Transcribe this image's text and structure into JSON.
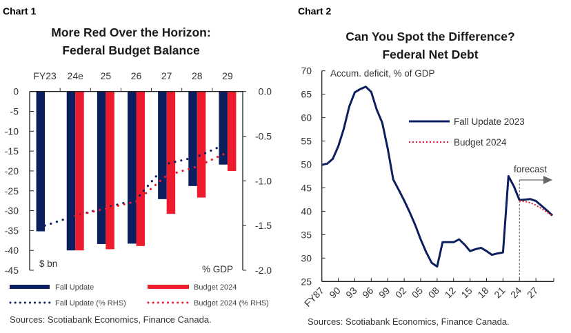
{
  "colors": {
    "fall": "#0b1f5e",
    "budget": "#ec1c2e",
    "axis": "#222222",
    "forecast": "#666666"
  },
  "chart_data": [
    {
      "type": "bar",
      "label": "Chart 1",
      "title": [
        "More Red Over the Horizon:",
        "Federal Budget Balance"
      ],
      "categories": [
        "FY23",
        "24e",
        "25",
        "26",
        "27",
        "28",
        "29"
      ],
      "left_axis": {
        "unit_label": "$ bn",
        "ylim": [
          -45,
          0
        ],
        "ticks": [
          "0",
          "-5",
          "-10",
          "-15",
          "-20",
          "-25",
          "-30",
          "-35",
          "-40",
          "-45"
        ]
      },
      "right_axis": {
        "unit_label": "% GDP",
        "ylim": [
          -2.0,
          0.0
        ],
        "ticks": [
          "0.0",
          "-0.5",
          "-1.0",
          "-1.5",
          "-2.0"
        ]
      },
      "series": [
        {
          "name": "Fall Update",
          "kind": "bar",
          "axis": "left",
          "color": "#0b1f5e",
          "values": [
            -35.2,
            -40.0,
            -38.4,
            -38.3,
            -27.1,
            -23.8,
            -18.4
          ]
        },
        {
          "name": "Budget 2024",
          "kind": "bar",
          "axis": "left",
          "color": "#ec1c2e",
          "values": [
            null,
            -40.0,
            -39.7,
            -38.9,
            -30.8,
            -26.7,
            -20.0
          ]
        },
        {
          "name": "Fall Update (% RHS)",
          "kind": "dotted-line",
          "axis": "right",
          "color": "#0b1f5e",
          "values": [
            -1.5,
            -1.39,
            -1.3,
            -1.21,
            -0.81,
            -0.73,
            -0.58
          ]
        },
        {
          "name": "Budget 2024 (% RHS)",
          "kind": "dotted-line",
          "axis": "right",
          "color": "#ec1c2e",
          "values": [
            null,
            -1.39,
            -1.31,
            -1.23,
            -0.94,
            -0.84,
            -0.68
          ]
        }
      ],
      "legend_placement": "bottom",
      "source": "Sources: Scotiabank Economics, Finance Canada."
    },
    {
      "type": "line",
      "label": "Chart 2",
      "title": [
        "Can You Spot the Difference?",
        "Federal Net Debt"
      ],
      "ylabel": "Accum. deficit, % of GDP",
      "ylim": [
        25,
        70
      ],
      "yticks": [
        "70",
        "65",
        "60",
        "55",
        "50",
        "45",
        "40",
        "35",
        "30",
        "25"
      ],
      "xlim": [
        1987,
        2029
      ],
      "xtick_labels": [
        "FY87",
        "90",
        "93",
        "96",
        "99",
        "02",
        "05",
        "08",
        "12",
        "15",
        "18",
        "21",
        "24",
        "27"
      ],
      "series": [
        {
          "name": "Fall Update 2023",
          "style": "solid",
          "color": "#0b1f5e",
          "x": [
            1987,
            1988,
            1989,
            1990,
            1991,
            1992,
            1993,
            1994,
            1995,
            1996,
            1997,
            1998,
            1999,
            2000,
            2001,
            2002,
            2003,
            2004,
            2005,
            2006,
            2007,
            2008,
            2009,
            2010,
            2011,
            2012,
            2013,
            2014,
            2015,
            2016,
            2017,
            2018,
            2019,
            2020,
            2021,
            2022,
            2023,
            2024,
            2025,
            2026,
            2027,
            2028,
            2029
          ],
          "y": [
            49.9,
            50.2,
            51.2,
            53.9,
            57.6,
            62.4,
            65.4,
            66.1,
            66.6,
            65.5,
            61.7,
            58.9,
            53.4,
            46.8,
            44.6,
            42.3,
            39.8,
            37.1,
            34.0,
            31.3,
            29.0,
            28.2,
            33.4,
            33.4,
            33.4,
            34.0,
            32.9,
            31.5,
            31.9,
            32.2,
            31.5,
            30.7,
            31.0,
            31.2,
            47.5,
            45.3,
            42.4,
            42.5,
            42.6,
            42.2,
            41.2,
            40.2,
            39.1
          ]
        },
        {
          "name": "Budget 2024",
          "style": "dotted",
          "color": "#ec1c2e",
          "x": [
            2023,
            2024,
            2025,
            2026,
            2027,
            2028,
            2029
          ],
          "y": [
            42.2,
            42.1,
            41.8,
            41.3,
            40.6,
            39.8,
            39.0
          ]
        }
      ],
      "annotation": {
        "text": "forecast",
        "start_x": 2023
      },
      "legend_placement": "center-right",
      "source": "Sources: Scotiabank Economics, Finance Canada."
    }
  ]
}
